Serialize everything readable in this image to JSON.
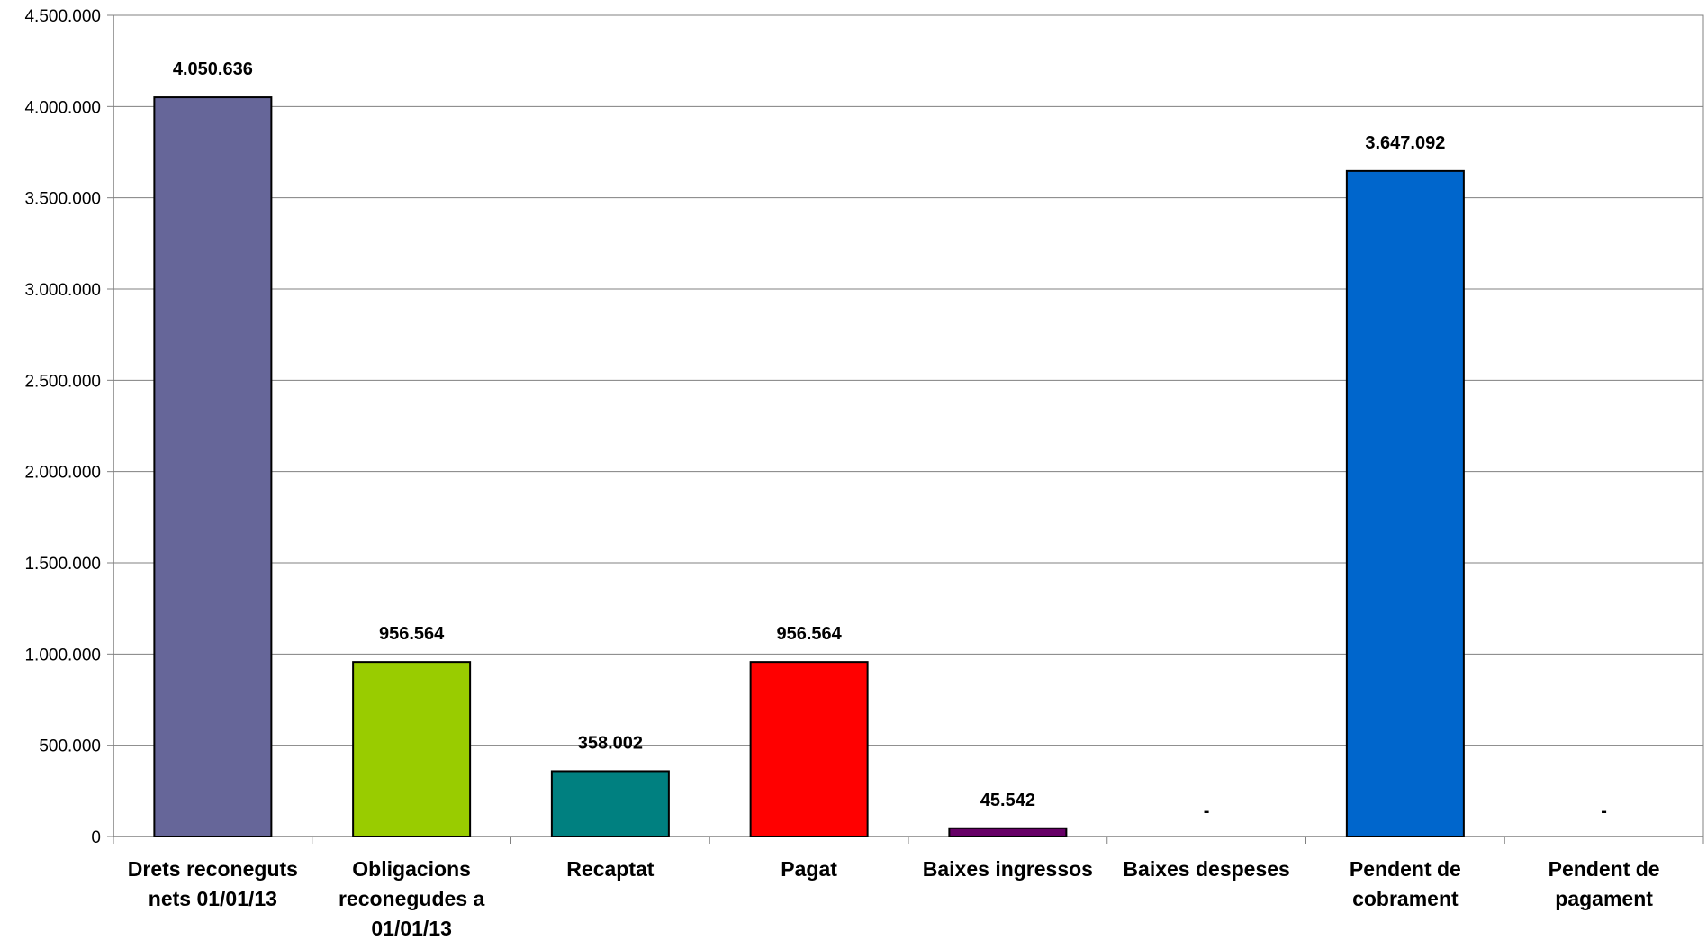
{
  "chart_data": {
    "type": "bar",
    "categories": [
      [
        "Drets reconeguts",
        "nets 01/01/13"
      ],
      [
        "Obligacions",
        "reconegudes a",
        "01/01/13"
      ],
      [
        "Recaptat"
      ],
      [
        "Pagat"
      ],
      [
        "Baixes ingressos"
      ],
      [
        "Baixes despeses"
      ],
      [
        "Pendent de",
        "cobrament"
      ],
      [
        "Pendent de",
        "pagament"
      ]
    ],
    "values": [
      4050636,
      956564,
      358002,
      956564,
      45542,
      0,
      3647092,
      0
    ],
    "data_labels": [
      "4.050.636",
      "956.564",
      "358.002",
      "956.564",
      "45.542",
      "-",
      "3.647.092",
      "-"
    ],
    "colors": [
      "#666699",
      "#99CC00",
      "#008080",
      "#FF0000",
      "#660066",
      "#FFFFFF",
      "#0066CC",
      "#FFFFFF"
    ],
    "y_ticks": [
      0,
      500000,
      1000000,
      1500000,
      2000000,
      2500000,
      3000000,
      3500000,
      4000000,
      4500000
    ],
    "y_tick_labels": [
      "0",
      "500.000",
      "1.000.000",
      "1.500.000",
      "2.000.000",
      "2.500.000",
      "3.000.000",
      "3.500.000",
      "4.000.000",
      "4.500.000"
    ],
    "ylim": [
      0,
      4500000
    ],
    "grid": true,
    "title": "",
    "xlabel": "",
    "ylabel": ""
  }
}
